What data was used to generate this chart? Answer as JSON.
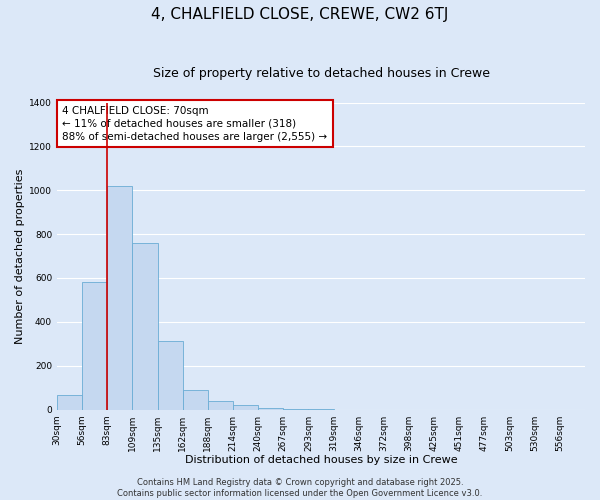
{
  "title": "4, CHALFIELD CLOSE, CREWE, CW2 6TJ",
  "subtitle": "Size of property relative to detached houses in Crewe",
  "xlabel": "Distribution of detached houses by size in Crewe",
  "ylabel": "Number of detached properties",
  "bin_labels": [
    "30sqm",
    "56sqm",
    "83sqm",
    "109sqm",
    "135sqm",
    "162sqm",
    "188sqm",
    "214sqm",
    "240sqm",
    "267sqm",
    "293sqm",
    "319sqm",
    "346sqm",
    "372sqm",
    "398sqm",
    "425sqm",
    "451sqm",
    "477sqm",
    "503sqm",
    "530sqm",
    "556sqm"
  ],
  "bar_values": [
    65,
    580,
    1020,
    760,
    315,
    88,
    40,
    20,
    8,
    2,
    1,
    0,
    0,
    0,
    0,
    0,
    0,
    0,
    0,
    0,
    0
  ],
  "bar_color": "#c5d8f0",
  "bar_edge_color": "#6aacd5",
  "vline_x_index": 1,
  "vline_color": "#cc0000",
  "ylim": [
    0,
    1400
  ],
  "yticks": [
    0,
    200,
    400,
    600,
    800,
    1000,
    1200,
    1400
  ],
  "annotation_line1": "4 CHALFIELD CLOSE: 70sqm",
  "annotation_line2": "← 11% of detached houses are smaller (318)",
  "annotation_line3": "88% of semi-detached houses are larger (2,555) →",
  "annotation_box_color": "#ffffff",
  "annotation_box_edge_color": "#cc0000",
  "footer_line1": "Contains HM Land Registry data © Crown copyright and database right 2025.",
  "footer_line2": "Contains public sector information licensed under the Open Government Licence v3.0.",
  "background_color": "#dce8f8",
  "plot_bg_color": "#dce8f8",
  "grid_color": "#ffffff",
  "title_fontsize": 11,
  "subtitle_fontsize": 9,
  "axis_label_fontsize": 8,
  "tick_fontsize": 6.5,
  "annotation_fontsize": 7.5,
  "footer_fontsize": 6
}
